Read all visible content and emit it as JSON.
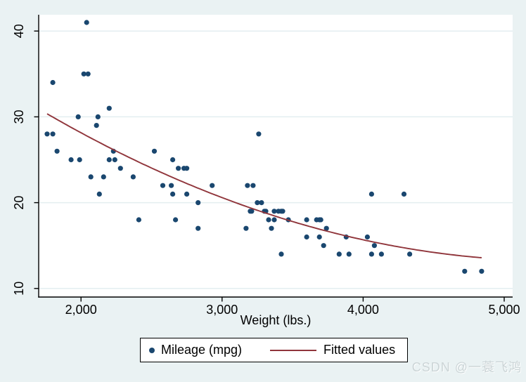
{
  "colors": {
    "background": "#eaf2f3",
    "plot_bg": "#ffffff",
    "grid": "#e3eef0",
    "axis": "#000000",
    "marker": "#1a476f",
    "fit_line": "#90353b",
    "legend_border": "#000000",
    "watermark": "#ccd5d7"
  },
  "watermark": {
    "text": "CSDN @一蓑飞鸿"
  },
  "chart_data": {
    "type": "scatter",
    "title": "",
    "xlabel": "Weight (lbs.)",
    "ylabel": "",
    "xlim": [
      1700,
      5060
    ],
    "ylim": [
      9,
      41.9
    ],
    "grid": "horizontal-only",
    "x_ticks": {
      "values": [
        2000,
        3000,
        4000,
        5000
      ],
      "labels": [
        "2,000",
        "3,000",
        "4,000",
        "5,000"
      ]
    },
    "y_ticks": {
      "values": [
        10,
        20,
        30,
        40
      ],
      "labels": [
        "10",
        "20",
        "30",
        "40"
      ]
    },
    "legend": {
      "position": "bottom-center",
      "items": [
        {
          "label": "Mileage (mpg)",
          "marker": "dot"
        },
        {
          "label": "Fitted values",
          "marker": "line"
        }
      ]
    },
    "series": [
      {
        "name": "Mileage (mpg)",
        "type": "scatter",
        "x_is": "weight_lbs",
        "y_is": "mpg",
        "points": [
          [
            1760,
            28
          ],
          [
            1800,
            28
          ],
          [
            1800,
            34
          ],
          [
            1830,
            26
          ],
          [
            1930,
            25
          ],
          [
            1980,
            30
          ],
          [
            1990,
            25
          ],
          [
            2020,
            35
          ],
          [
            2040,
            41
          ],
          [
            2050,
            35
          ],
          [
            2070,
            23
          ],
          [
            2110,
            29
          ],
          [
            2120,
            30
          ],
          [
            2130,
            21
          ],
          [
            2160,
            23
          ],
          [
            2200,
            25
          ],
          [
            2200,
            31
          ],
          [
            2230,
            26
          ],
          [
            2240,
            25
          ],
          [
            2280,
            24
          ],
          [
            2370,
            23
          ],
          [
            2410,
            18
          ],
          [
            2520,
            26
          ],
          [
            2580,
            22
          ],
          [
            2640,
            22
          ],
          [
            2650,
            21
          ],
          [
            2650,
            25
          ],
          [
            2670,
            18
          ],
          [
            2690,
            24
          ],
          [
            2730,
            24
          ],
          [
            2750,
            21
          ],
          [
            2750,
            24
          ],
          [
            2830,
            17
          ],
          [
            2830,
            20
          ],
          [
            2930,
            22
          ],
          [
            3170,
            17
          ],
          [
            3180,
            22
          ],
          [
            3200,
            19
          ],
          [
            3210,
            19
          ],
          [
            3220,
            22
          ],
          [
            3250,
            20
          ],
          [
            3260,
            28
          ],
          [
            3280,
            20
          ],
          [
            3300,
            19
          ],
          [
            3310,
            19
          ],
          [
            3330,
            18
          ],
          [
            3350,
            17
          ],
          [
            3370,
            18
          ],
          [
            3370,
            19
          ],
          [
            3400,
            19
          ],
          [
            3420,
            14
          ],
          [
            3420,
            19
          ],
          [
            3430,
            19
          ],
          [
            3470,
            18
          ],
          [
            3600,
            16
          ],
          [
            3600,
            18
          ],
          [
            3670,
            18
          ],
          [
            3690,
            16
          ],
          [
            3690,
            18
          ],
          [
            3700,
            18
          ],
          [
            3720,
            15
          ],
          [
            3740,
            17
          ],
          [
            3830,
            14
          ],
          [
            3880,
            16
          ],
          [
            3900,
            14
          ],
          [
            4030,
            16
          ],
          [
            4060,
            14
          ],
          [
            4060,
            21
          ],
          [
            4080,
            15
          ],
          [
            4130,
            14
          ],
          [
            4290,
            21
          ],
          [
            4330,
            14
          ],
          [
            4720,
            12
          ],
          [
            4840,
            12
          ]
        ]
      },
      {
        "name": "Fitted values",
        "type": "quadratic-fit",
        "coefficients": {
          "intercept": 51.18308,
          "weight": -0.0141581,
          "weight_sq": 1.32e-06
        },
        "x_range": [
          1760,
          4840
        ]
      }
    ]
  }
}
